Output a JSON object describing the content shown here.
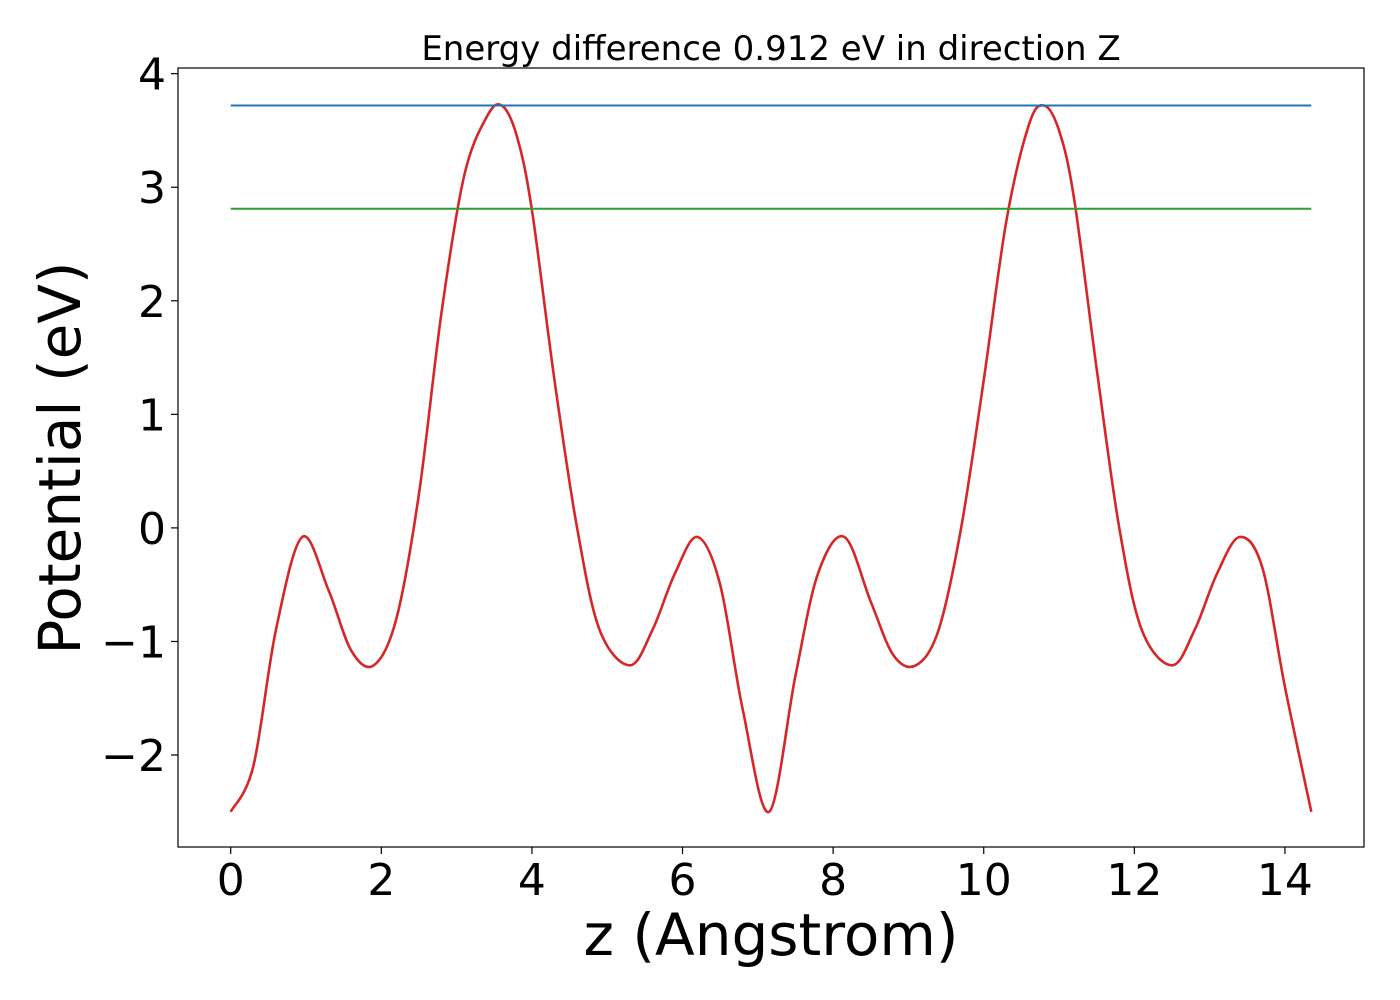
{
  "chart_data": {
    "type": "line",
    "title": "Energy difference 0.912 eV in direction Z",
    "xlabel": "z (Angstrom)",
    "ylabel": "Potential (eV)",
    "xlim": [
      -0.7,
      15.05
    ],
    "ylim": [
      -2.81,
      4.05
    ],
    "xticks": [
      0,
      2,
      4,
      6,
      8,
      10,
      12,
      14
    ],
    "yticks": [
      -2,
      -1,
      0,
      1,
      2,
      3,
      4
    ],
    "xtick_labels": [
      "0",
      "2",
      "4",
      "6",
      "8",
      "10",
      "12",
      "14"
    ],
    "ytick_labels": [
      "−2",
      "−1",
      "0",
      "1",
      "2",
      "3",
      "4"
    ],
    "grid": false,
    "legend": "none",
    "series": [
      {
        "role": "potential",
        "color": "#d62728",
        "x": [
          0.0,
          0.3,
          0.6,
          0.95,
          1.3,
          1.6,
          1.9,
          2.2,
          2.5,
          2.8,
          3.1,
          3.4,
          3.6,
          3.8,
          4.0,
          4.3,
          4.6,
          4.9,
          5.3,
          5.6,
          5.9,
          6.2,
          6.5,
          6.8,
          7.15,
          7.5,
          7.8,
          8.15,
          8.5,
          8.8,
          9.1,
          9.4,
          9.7,
          10.0,
          10.3,
          10.6,
          10.8,
          11.0,
          11.2,
          11.5,
          11.8,
          12.1,
          12.5,
          12.8,
          13.1,
          13.4,
          13.7,
          14.0,
          14.35
        ],
        "y": [
          -2.5,
          -2.1,
          -0.9,
          -0.08,
          -0.55,
          -1.08,
          -1.21,
          -0.8,
          0.3,
          1.9,
          3.1,
          3.62,
          3.72,
          3.45,
          2.8,
          1.3,
          0.0,
          -0.9,
          -1.21,
          -0.9,
          -0.4,
          -0.08,
          -0.5,
          -1.6,
          -2.5,
          -1.3,
          -0.4,
          -0.08,
          -0.65,
          -1.12,
          -1.21,
          -0.9,
          0.0,
          1.3,
          2.7,
          3.55,
          3.72,
          3.5,
          2.9,
          1.4,
          0.0,
          -0.9,
          -1.21,
          -0.9,
          -0.4,
          -0.08,
          -0.35,
          -1.4,
          -2.5
        ]
      },
      {
        "role": "max-level",
        "color": "#1f77b4",
        "x": [
          0.0,
          14.35
        ],
        "y": [
          3.72,
          3.72
        ]
      },
      {
        "role": "reference-level",
        "color": "#2ca02c",
        "x": [
          0.0,
          14.35
        ],
        "y": [
          2.81,
          2.81
        ]
      }
    ]
  }
}
